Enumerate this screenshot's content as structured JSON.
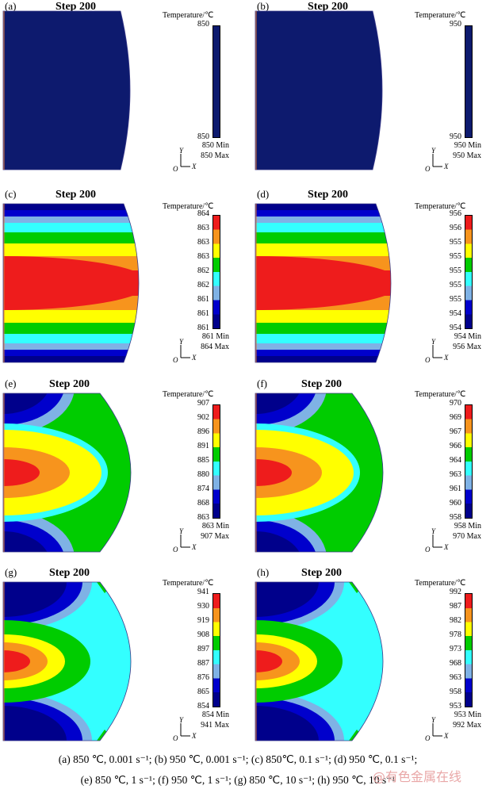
{
  "panels": [
    {
      "id": "a",
      "label": "(a)",
      "step": "Step 200",
      "temp_title": "Temperature/℃",
      "scale": [
        "850",
        "850"
      ],
      "min": "850 Min",
      "max": "850 Max",
      "pattern": "uniform"
    },
    {
      "id": "b",
      "label": "(b)",
      "step": "Step 200",
      "temp_title": "Temperature/℃",
      "scale": [
        "950",
        "950"
      ],
      "min": "950 Min",
      "max": "950 Max",
      "pattern": "uniform"
    },
    {
      "id": "c",
      "label": "(c)",
      "step": "Step 200",
      "temp_title": "Temperature/℃",
      "scale": [
        "864",
        "863",
        "863",
        "863",
        "862",
        "862",
        "861",
        "861",
        "861"
      ],
      "min": "861 Min",
      "max": "864 Max",
      "pattern": "bands"
    },
    {
      "id": "d",
      "label": "(d)",
      "step": "Step 200",
      "temp_title": "Temperature/℃",
      "scale": [
        "956",
        "956",
        "955",
        "955",
        "955",
        "955",
        "955",
        "954",
        "954"
      ],
      "min": "954 Min",
      "max": "956 Max",
      "pattern": "bands"
    },
    {
      "id": "e",
      "label": "(e)",
      "step": "Step 200",
      "temp_title": "Temperature/℃",
      "scale": [
        "907",
        "902",
        "896",
        "891",
        "885",
        "880",
        "874",
        "868",
        "863"
      ],
      "min": "863 Min",
      "max": "907 Max",
      "pattern": "bulb"
    },
    {
      "id": "f",
      "label": "(f)",
      "step": "Step 200",
      "temp_title": "Temperature/℃",
      "scale": [
        "970",
        "969",
        "967",
        "966",
        "964",
        "963",
        "961",
        "960",
        "958"
      ],
      "min": "958 Min",
      "max": "970 Max",
      "pattern": "bulb"
    },
    {
      "id": "g",
      "label": "(g)",
      "step": "Step 200",
      "temp_title": "Temperature/℃",
      "scale": [
        "941",
        "930",
        "919",
        "908",
        "897",
        "887",
        "876",
        "865",
        "854"
      ],
      "min": "854 Min",
      "max": "941 Max",
      "pattern": "corner"
    },
    {
      "id": "h",
      "label": "(h)",
      "step": "Step 200",
      "temp_title": "Temperature/℃",
      "scale": [
        "992",
        "987",
        "982",
        "978",
        "973",
        "968",
        "963",
        "958",
        "953"
      ],
      "min": "953 Min",
      "max": "992 Max",
      "pattern": "corner"
    }
  ],
  "axes_labels": {
    "y": "Y",
    "o": "O",
    "x": "X"
  },
  "colormap": [
    "#ee1c1c",
    "#f7941d",
    "#ffff00",
    "#00cc00",
    "#33ffff",
    "#00ffff",
    "#0000cc",
    "#00008b"
  ],
  "uniform_color": "#0d1a6e",
  "caption": {
    "line1": "(a) 850 ℃, 0.001 s⁻¹; (b) 950 ℃, 0.001 s⁻¹; (c) 850℃, 0.1 s⁻¹; (d) 950 ℃, 0.1 s⁻¹;",
    "line2": "(e) 850 ℃, 1 s⁻¹; (f) 950 ℃, 1 s⁻¹; (g) 850 ℃, 10 s⁻¹; (h) 950 ℃, 10 s⁻¹"
  },
  "watermark": "@有色金属在线"
}
